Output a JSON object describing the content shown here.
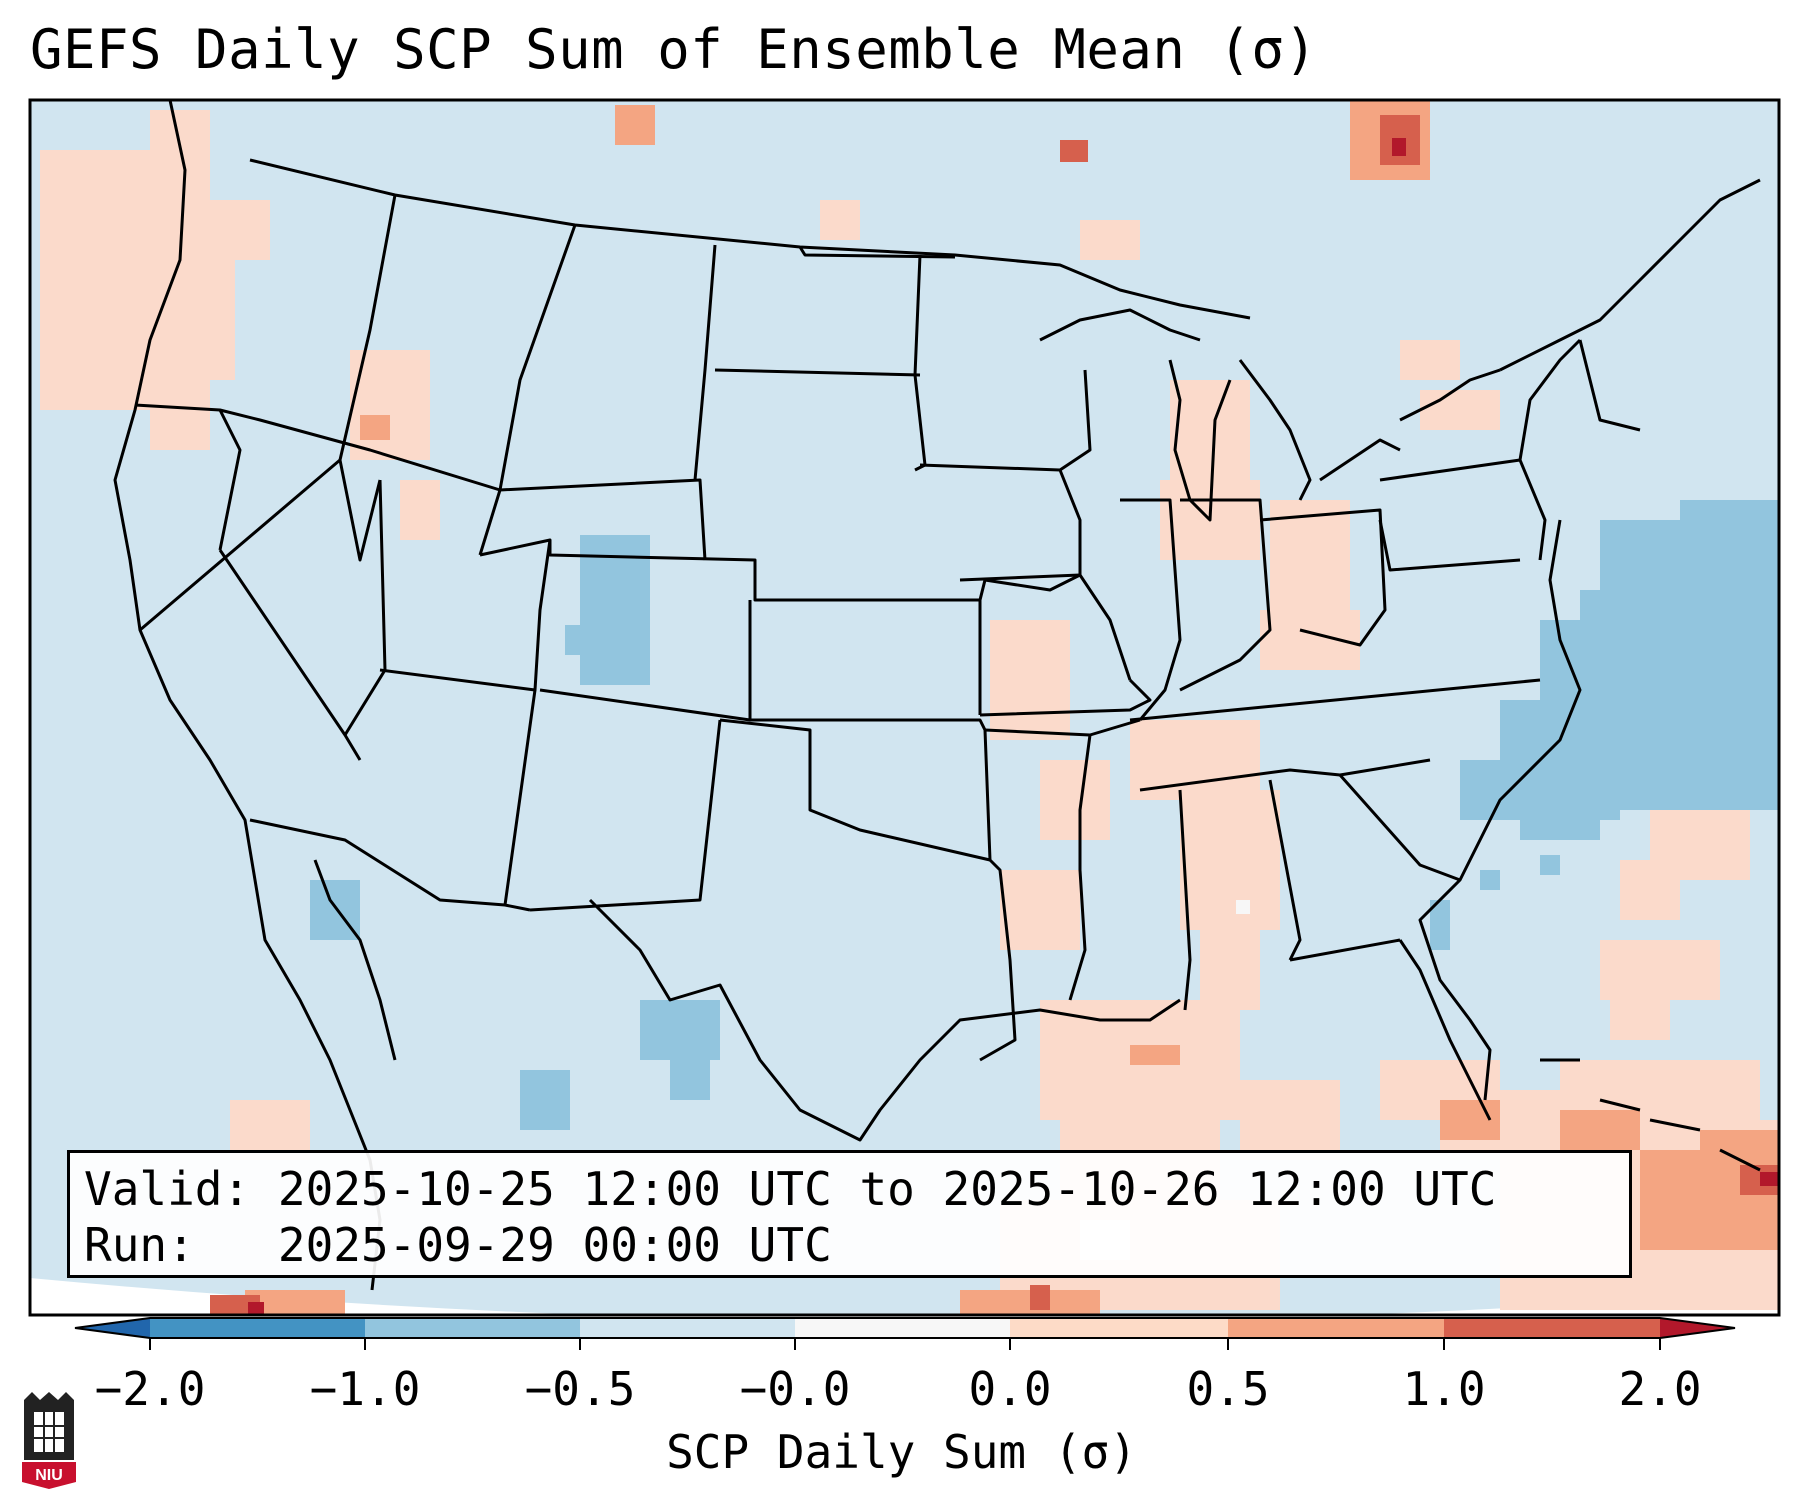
{
  "title": "GEFS Daily SCP Sum of Ensemble Mean (σ)",
  "info": {
    "valid_label": "Valid:",
    "valid_value": "2025-10-25 12:00 UTC to 2025-10-26 12:00 UTC",
    "run_label": "Run:",
    "run_value": "2025-09-29 00:00 UTC"
  },
  "colorbar": {
    "label": "SCP Daily Sum (σ)",
    "ticks": [
      "−2.0",
      "−1.0",
      "−0.5",
      "−0.0",
      "0.0",
      "0.5",
      "1.0",
      "2.0"
    ],
    "colors": [
      "#3a7fbd",
      "#8fc2de",
      "#cfe4f0",
      "#f7f7f7",
      "#fbdacb",
      "#f4a582",
      "#d6604d",
      "#b2182b"
    ]
  },
  "logo": {
    "name": "NIU"
  }
}
